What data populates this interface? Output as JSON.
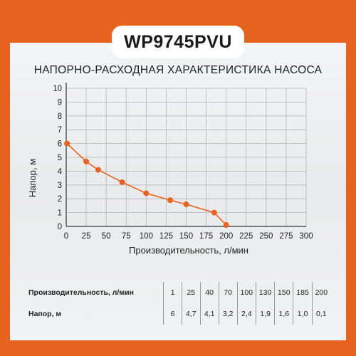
{
  "colors": {
    "accent": "#e8621f",
    "panel": "#ededee",
    "text": "#222222"
  },
  "model": "WP9745PVU",
  "chart_data": {
    "type": "line",
    "title": "НАПОРНО-РАСХОДНАЯ ХАРАКТЕРИСТИКА НАСОСА",
    "xlabel": "Производительность, л/мин",
    "ylabel": "Напор, м",
    "xlim": [
      0,
      300
    ],
    "ylim": [
      0,
      10
    ],
    "xticks": [
      "0",
      "25",
      "50",
      "75",
      "100",
      "125",
      "150",
      "175",
      "200",
      "225",
      "250",
      "275",
      "300"
    ],
    "yticks": [
      "0",
      "1",
      "2",
      "3",
      "4",
      "5",
      "6",
      "7",
      "8",
      "9",
      "10"
    ],
    "grid": true,
    "series": [
      {
        "x": [
          1,
          25,
          40,
          70,
          100,
          130,
          150,
          185,
          200
        ],
        "y": [
          6,
          4.7,
          4.1,
          3.2,
          2.4,
          1.9,
          1.6,
          1.0,
          0.1
        ]
      }
    ]
  },
  "table": {
    "row1_label": "Производительность, л/мин",
    "row1": [
      "1",
      "25",
      "40",
      "70",
      "100",
      "130",
      "150",
      "185",
      "200"
    ],
    "row2_label": "Напор, м",
    "row2": [
      "6",
      "4,7",
      "4,1",
      "3,2",
      "2,4",
      "1,9",
      "1,6",
      "1,0",
      "0,1"
    ]
  }
}
